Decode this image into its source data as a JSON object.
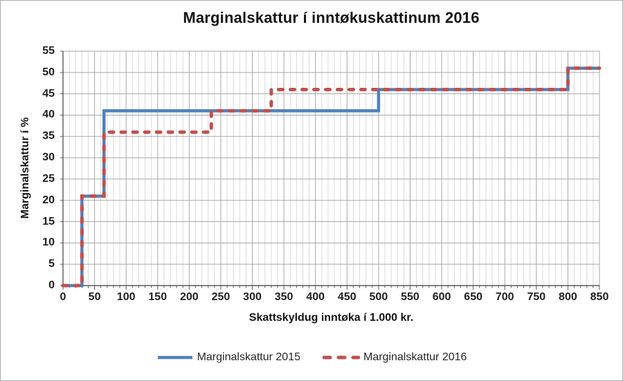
{
  "frame": {
    "background": "#ffffff",
    "border_color": "#ababab"
  },
  "chart_data": {
    "type": "line",
    "subtype": "step",
    "title": "Marginalskattur í inntøkuskattinum 2016",
    "xlabel": "Skattskyldug inntøka í 1.000 kr.",
    "ylabel": "Marginalskattur í %",
    "xlim": [
      0,
      850
    ],
    "ylim": [
      0,
      55
    ],
    "x_ticks": [
      0,
      50,
      100,
      150,
      200,
      250,
      300,
      350,
      400,
      450,
      500,
      550,
      600,
      650,
      700,
      750,
      800,
      850
    ],
    "y_ticks": [
      0,
      5,
      10,
      15,
      20,
      25,
      30,
      35,
      40,
      45,
      50,
      55
    ],
    "x_minor_step": 10,
    "grid": {
      "minor_vertical_color": "#d9d9d9",
      "major_vertical_color": "#a6a6a6",
      "horizontal_color": "#a6a6a6",
      "axis_color": "#595959"
    },
    "legend_position": "bottom",
    "series": [
      {
        "name": "Marginalskattur 2015",
        "color": "#4F81BD",
        "dash": "solid",
        "width": 4.5,
        "points": [
          [
            0,
            0
          ],
          [
            30,
            0
          ],
          [
            30,
            21
          ],
          [
            65,
            21
          ],
          [
            65,
            41
          ],
          [
            500,
            41
          ],
          [
            500,
            46
          ],
          [
            800,
            46
          ],
          [
            800,
            51
          ],
          [
            850,
            51
          ]
        ]
      },
      {
        "name": "Marginalskattur 2016",
        "color": "#C0504D",
        "dash": "dashed",
        "width": 5,
        "points": [
          [
            0,
            0
          ],
          [
            30,
            0
          ],
          [
            30,
            21
          ],
          [
            65,
            21
          ],
          [
            65,
            36
          ],
          [
            235,
            36
          ],
          [
            235,
            41
          ],
          [
            330,
            41
          ],
          [
            330,
            46
          ],
          [
            800,
            46
          ],
          [
            800,
            51
          ],
          [
            850,
            51
          ]
        ]
      }
    ]
  }
}
